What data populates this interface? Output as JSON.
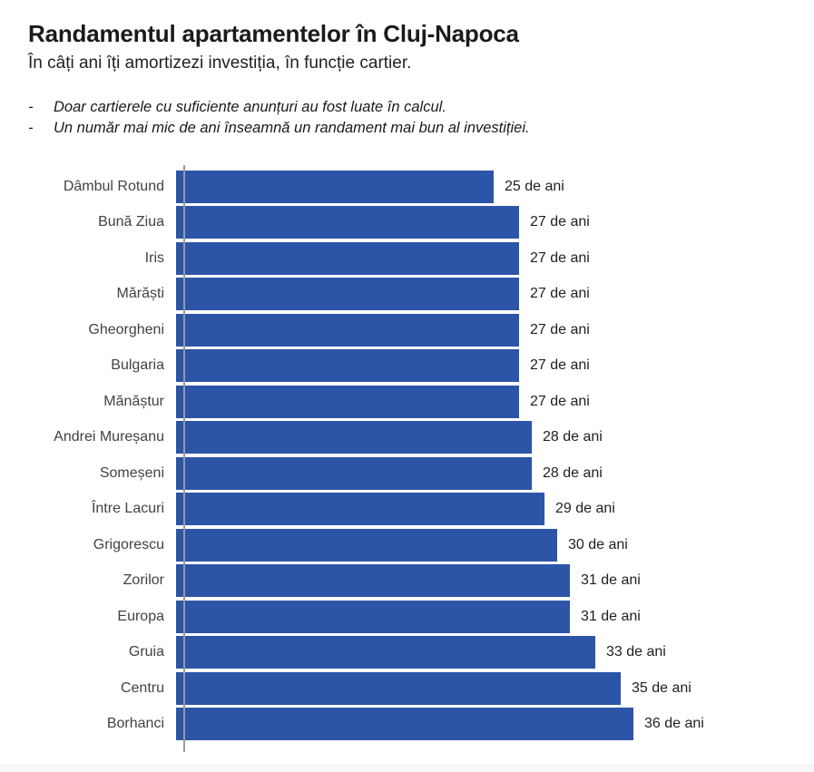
{
  "header": {
    "title": "Randamentul apartamentelor în Cluj-Napoca",
    "subtitle": "În câți ani îți amortizezi investiția, în funcție cartier.",
    "bullet_char": "-",
    "notes": [
      "Doar cartierele cu suficiente anunțuri au fost luate în calcul.",
      "Un număr mai mic de ani înseamnă un randament mai bun al investiției."
    ]
  },
  "chart_data": {
    "type": "bar",
    "orientation": "horizontal",
    "title": "Randamentul apartamentelor în Cluj-Napoca",
    "subtitle": "În câți ani îți amortizezi investiția, în funcție cartier.",
    "xlabel": "",
    "ylabel": "",
    "xlim": [
      0,
      36
    ],
    "grid": false,
    "legend": false,
    "categories": [
      "Dâmbul Rotund",
      "Bună Ziua",
      "Iris",
      "Mărăști",
      "Gheorgheni",
      "Bulgaria",
      "Mănăștur",
      "Andrei Mureșanu",
      "Someșeni",
      "Între Lacuri",
      "Grigorescu",
      "Zorilor",
      "Europa",
      "Gruia",
      "Centru",
      "Borhanci"
    ],
    "values": [
      25,
      27,
      27,
      27,
      27,
      27,
      27,
      28,
      28,
      29,
      30,
      31,
      31,
      33,
      35,
      36
    ],
    "value_labels": [
      "25 de ani",
      "27 de ani",
      "27 de ani",
      "27 de ani",
      "27 de ani",
      "27 de ani",
      "27 de ani",
      "28 de ani",
      "28 de ani",
      "29 de ani",
      "30 de ani",
      "31 de ani",
      "31 de ani",
      "33 de ani",
      "35 de ani",
      "36 de ani"
    ],
    "colors": {
      "bar": "#2c55a8",
      "axis_line": "#9a9a9a",
      "category_label": "#424242",
      "value_label": "#1f1f1f",
      "background": "#ffffff",
      "footer_band": "#f7f7f7"
    }
  }
}
